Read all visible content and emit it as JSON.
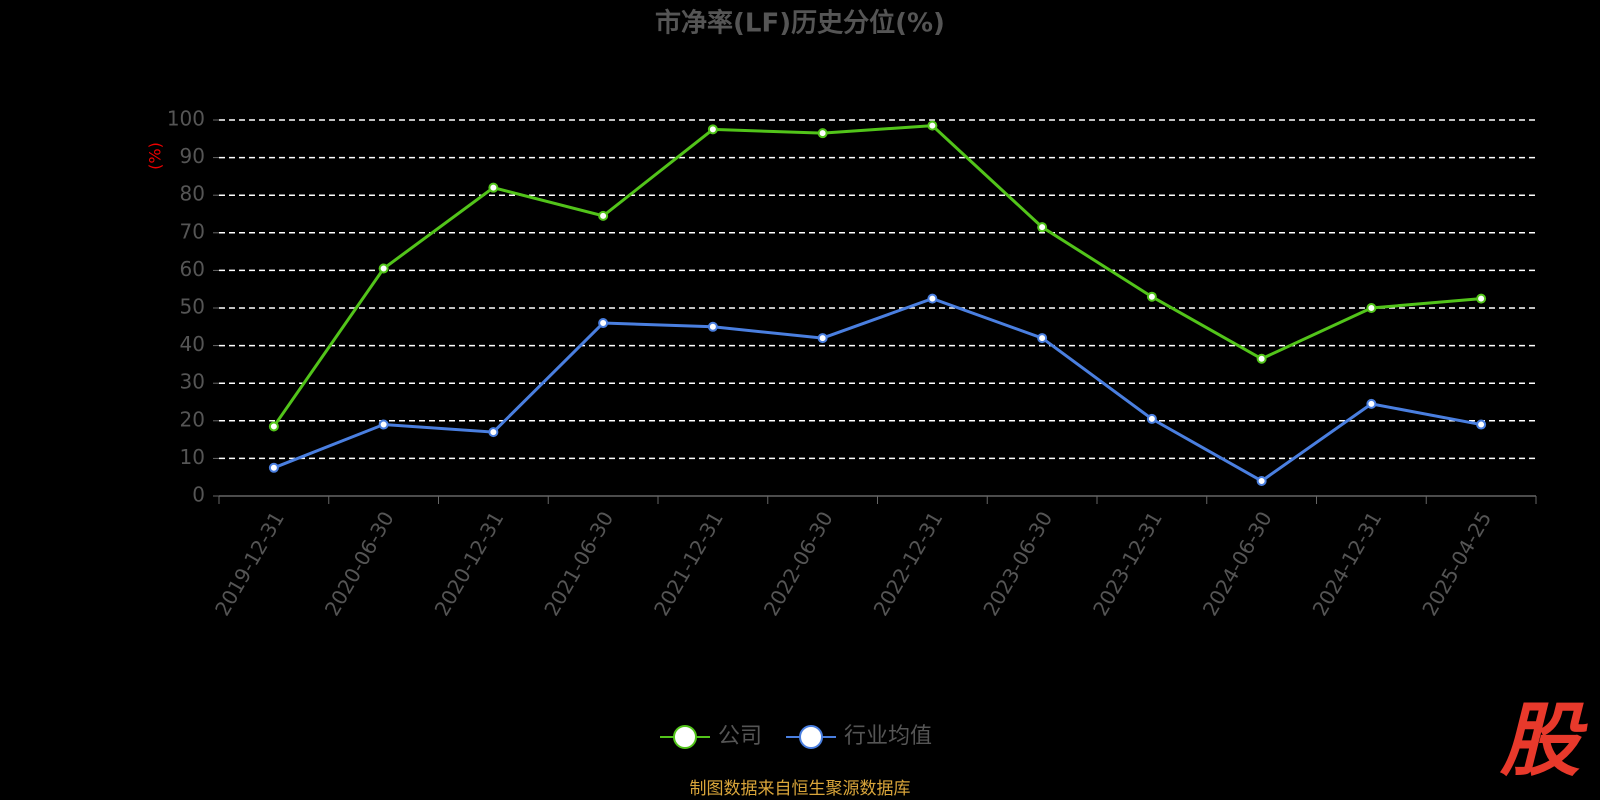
{
  "chart_data": {
    "type": "line",
    "title": "市净率(LF)历史分位(%)",
    "y_label": "(%)",
    "categories": [
      "2019-12-31",
      "2020-06-30",
      "2020-12-31",
      "2021-06-30",
      "2021-12-31",
      "2022-06-30",
      "2022-12-31",
      "2023-06-30",
      "2023-12-31",
      "2024-06-30",
      "2024-12-31",
      "2025-04-25"
    ],
    "series": [
      {
        "name": "公司",
        "color": "#52c41a",
        "values": [
          18.5,
          60.5,
          82,
          74.5,
          97.5,
          96.5,
          98.5,
          71.5,
          53,
          36.5,
          50,
          52.5
        ]
      },
      {
        "name": "行业均值",
        "color": "#4a7fe0",
        "values": [
          7.5,
          19,
          17,
          46,
          45,
          42,
          52.5,
          42,
          20.5,
          4,
          24.5,
          19
        ]
      }
    ],
    "ylim": [
      0,
      100
    ],
    "yticks": [
      0,
      10,
      20,
      30,
      40,
      50,
      60,
      70,
      80,
      90,
      100
    ],
    "grid": true,
    "legend": "bottom",
    "source": "制图数据来自恒生聚源数据库",
    "logo": "股"
  }
}
